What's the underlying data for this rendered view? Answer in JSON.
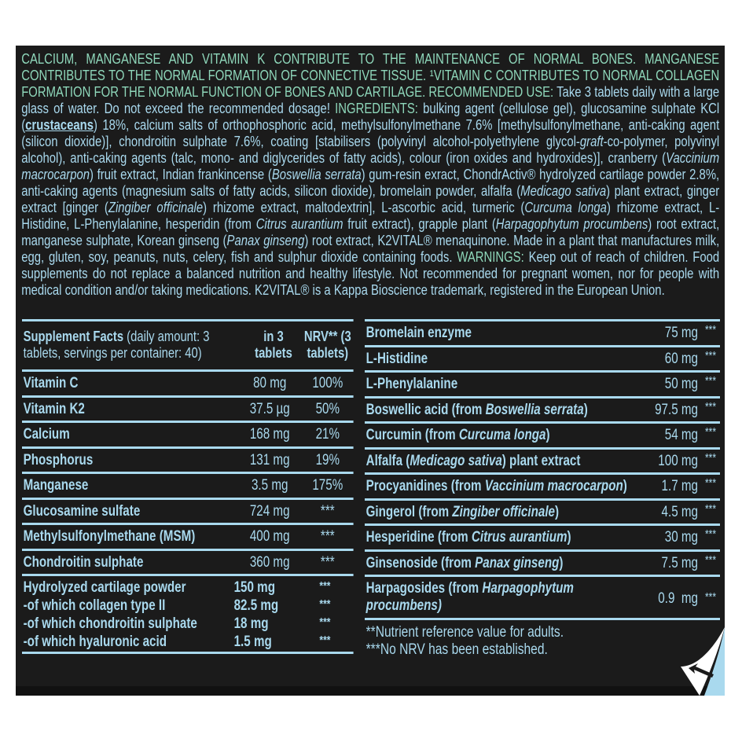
{
  "colors": {
    "background": "#1b1b1b",
    "text_blue": "#a9d9ee",
    "text_green": "#8fd8bb"
  },
  "paragraph": {
    "segments": [
      {
        "t": "CALCIUM, MANGANESE AND VITAMIN K CONTRIBUTE TO THE MAINTENANCE OF NORMAL BONES. MANGANESE CONTRIBUTES TO THE NORMAL FORMATION OF CONNECTIVE TISSUE. ¹VITAMIN C CONTRIBUTES TO NORMAL COLLAGEN FORMATION FOR THE NORMAL FUNCTION OF BONES AND CARTILAGE. RECOMMENDED USE:",
        "s": "g"
      },
      {
        "t": " Take 3 tablets daily with a large glass of water. Do not exceed the recommended dosage! ",
        "s": "b"
      },
      {
        "t": "INGREDIENTS:",
        "s": "g"
      },
      {
        "t": " bulking agent (cellulose gel), glucosamine sulphate KCl (",
        "s": "b"
      },
      {
        "t": "crustaceans",
        "s": "u"
      },
      {
        "t": ") 18%, calcium salts of orthophosphoric acid, methylsulfonylmethane 7.6% [methylsulfonylmethane, anti-caking agent (silicon dioxide)], chondroitin sulphate 7.6%, coating [stabilisers (polyvinyl alcohol-polyethylene glycol-",
        "s": "b"
      },
      {
        "t": "graft",
        "s": "i"
      },
      {
        "t": "-co-polymer, polyvinyl alcohol), anti-caking agents (talc, mono- and diglycerides of fatty acids), colour (iron oxides and hydroxides)], cranberry (",
        "s": "b"
      },
      {
        "t": "Vaccinium macrocarpon",
        "s": "i"
      },
      {
        "t": ") fruit extract, Indian frankincense (",
        "s": "b"
      },
      {
        "t": "Boswellia serrata",
        "s": "i"
      },
      {
        "t": ") gum-resin exract, ChondrActiv® hydrolyzed cartilage powder 2.8%, anti-caking agents (mag­nesium salts of fatty acids, silicon dioxide), bromelain powder, alfalfa (",
        "s": "b"
      },
      {
        "t": "Medicago sativa",
        "s": "i"
      },
      {
        "t": ") plant extract, ginger extract [ginger (",
        "s": "b"
      },
      {
        "t": "Zingiber officinale",
        "s": "i"
      },
      {
        "t": ") rhizome extract, maltodextrin], L-ascorbic acid, turmeric (",
        "s": "b"
      },
      {
        "t": "Curcuma longa",
        "s": "i"
      },
      {
        "t": ") rhizome extract, L-Histidine, L-Phenylalanine, hesperidin (from ",
        "s": "b"
      },
      {
        "t": "Citrus aurantium",
        "s": "i"
      },
      {
        "t": " fruit extract), grapple plant (",
        "s": "b"
      },
      {
        "t": "Harpagophytum procumbens",
        "s": "i"
      },
      {
        "t": ") root extract, manganese sulphate, Korean ginseng (",
        "s": "b"
      },
      {
        "t": "Panax ginseng",
        "s": "i"
      },
      {
        "t": ") root extract, K2VITAL® menaquinone. Made in a plant that manufactures milk, egg, gluten, soy, pea­nuts, nuts, celery, fish and sulphur dioxide containing foods. ",
        "s": "b"
      },
      {
        "t": "WARNINGS:",
        "s": "g"
      },
      {
        "t": " Keep out of reach of children. Food supplements do not re­place a balanced nutrition and healthy lifestyle. Not recommended for pregnant women, nor for people with medical condition and/or taking medications. K2VITAL® is a Kappa Bioscience trademark, registered in the European Union.",
        "s": "b"
      }
    ]
  },
  "facts_header": {
    "title": "Supplement Facts",
    "subtitle": " (daily amount: 3 tablets, servings per container: 40)",
    "col_amount": "in 3 tablets",
    "col_nrv": "NRV** (3 tablets)"
  },
  "left_rows": [
    {
      "name": [
        {
          "t": "Vitamin C"
        }
      ],
      "amount": "80 mg",
      "nrv": "100%"
    },
    {
      "name": [
        {
          "t": "Vitamin K2"
        }
      ],
      "amount": "37.5 µg",
      "nrv": "50%"
    },
    {
      "name": [
        {
          "t": "Calcium"
        }
      ],
      "amount": "168 mg",
      "nrv": "21%"
    },
    {
      "name": [
        {
          "t": "Phosphorus"
        }
      ],
      "amount": "131 mg",
      "nrv": "19%"
    },
    {
      "name": [
        {
          "t": "Manganese"
        }
      ],
      "amount": "3.5 mg",
      "nrv": "175%"
    },
    {
      "name": [
        {
          "t": "Glucosamine sulfate"
        }
      ],
      "amount": "724 mg",
      "nrv": "***"
    },
    {
      "name": [
        {
          "t": "Methylsulfonylmethane (MSM)"
        }
      ],
      "amount": "400 mg",
      "nrv": "***"
    },
    {
      "name": [
        {
          "t": "Chondroitin sulphate"
        }
      ],
      "amount": "360 mg",
      "nrv": "***"
    }
  ],
  "left_group": [
    {
      "name": "Hydrolyzed cartilage powder",
      "amount": "150 mg",
      "nrv": "***"
    },
    {
      "name": "-of which collagen type II",
      "amount": "82.5 mg",
      "nrv": "***"
    },
    {
      "name": "-of which chondroitin sulphate",
      "amount": "18 mg",
      "nrv": "***"
    },
    {
      "name": "-of which hyaluronic acid",
      "amount": "1.5 mg",
      "nrv": "***"
    }
  ],
  "right_rows": [
    {
      "name": [
        {
          "t": "Bromelain enzyme"
        }
      ],
      "amount": "75 mg",
      "nrv": "***"
    },
    {
      "name": [
        {
          "t": "L-Histidine"
        }
      ],
      "amount": "60 mg",
      "nrv": "***"
    },
    {
      "name": [
        {
          "t": "L-Phenylalanine"
        }
      ],
      "amount": "50 mg",
      "nrv": "***"
    },
    {
      "name": [
        {
          "t": "Boswellic acid (from "
        },
        {
          "t": "Boswellia serrata",
          "i": true
        },
        {
          "t": ")"
        }
      ],
      "amount": "97.5 mg",
      "nrv": "***"
    },
    {
      "name": [
        {
          "t": "Curcumin (from "
        },
        {
          "t": "Curcuma longa",
          "i": true
        },
        {
          "t": ")"
        }
      ],
      "amount": "54 mg",
      "nrv": "***"
    },
    {
      "name": [
        {
          "t": "Alfalfa ("
        },
        {
          "t": "Medicago sativa",
          "i": true
        },
        {
          "t": ") plant extract"
        }
      ],
      "amount": "100 mg",
      "nrv": "***"
    },
    {
      "name": [
        {
          "t": "Procyanidines (from "
        },
        {
          "t": "Vaccinium macrocarpon",
          "i": true
        },
        {
          "t": ")"
        }
      ],
      "amount": "1.7 mg",
      "nrv": "***"
    },
    {
      "name": [
        {
          "t": "Gingerol (from "
        },
        {
          "t": "Zingiber officinale",
          "i": true
        },
        {
          "t": ")"
        }
      ],
      "amount": "4.5 mg",
      "nrv": "***"
    },
    {
      "name": [
        {
          "t": "Hesperidine (from "
        },
        {
          "t": "Citrus aurantium",
          "i": true
        },
        {
          "t": ")"
        }
      ],
      "amount": "30 mg",
      "nrv": "***"
    },
    {
      "name": [
        {
          "t": "Ginsenoside (from "
        },
        {
          "t": "Panax ginseng",
          "i": true
        },
        {
          "t": ")"
        }
      ],
      "amount": "7.5 mg",
      "nrv": "***"
    }
  ],
  "harp_row": {
    "name_a": "Harpagosides (from ",
    "name_b": "Harpagophytum",
    "name_c": "procumbens)",
    "amount": "0.9  mg",
    "nrv": "***"
  },
  "footnotes": [
    "**Nutrient reference value for adults.",
    "***No NRV has been established."
  ]
}
